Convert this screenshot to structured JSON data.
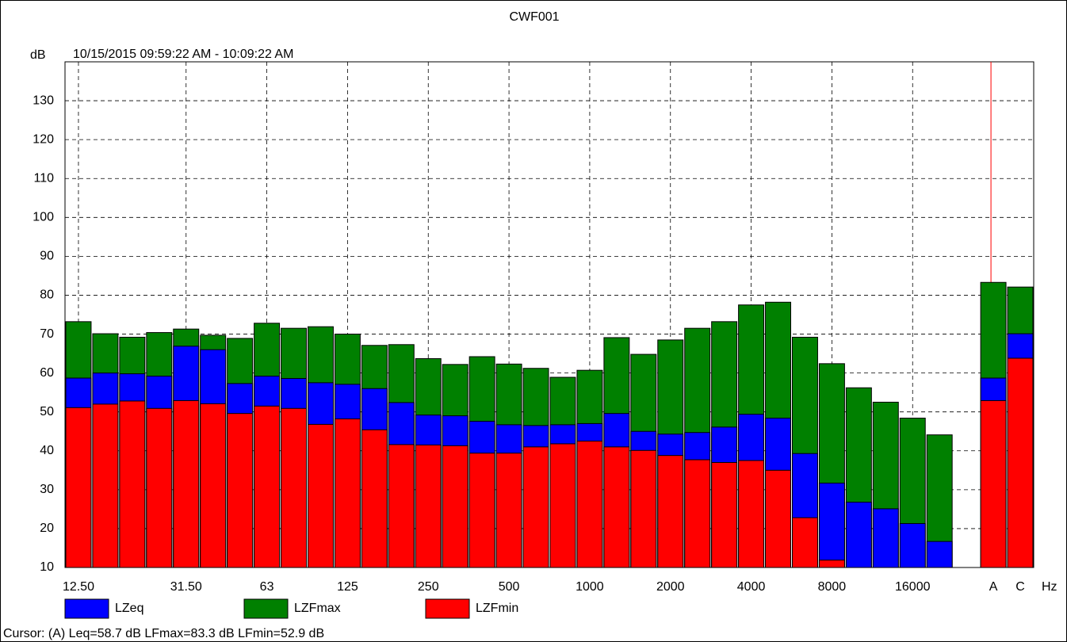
{
  "chart_data": {
    "type": "bar",
    "title": "CWF001",
    "subtitle": "10/15/2015 09:59:22 AM - 10:09:22 AM",
    "y_label": "dB",
    "x_label": "Hz",
    "categories": [
      "12.50",
      null,
      null,
      null,
      "31.50",
      null,
      null,
      "63",
      null,
      null,
      "125",
      null,
      null,
      "250",
      null,
      null,
      "500",
      null,
      null,
      "1000",
      null,
      null,
      "2000",
      null,
      null,
      "4000",
      null,
      null,
      "8000",
      null,
      null,
      "16000",
      null,
      null,
      "A",
      "C"
    ],
    "series": [
      {
        "name": "LZFmax",
        "color": "#008000",
        "values": [
          73.2,
          70.1,
          69.2,
          70.4,
          71.3,
          69.7,
          68.9,
          72.8,
          71.5,
          71.9,
          70.0,
          67.1,
          67.3,
          63.7,
          62.2,
          64.2,
          62.3,
          61.2,
          58.9,
          60.7,
          69.1,
          64.8,
          68.5,
          71.5,
          73.2,
          77.5,
          78.2,
          69.2,
          62.4,
          56.2,
          52.5,
          48.4,
          44.1,
          null,
          83.3,
          82.1
        ]
      },
      {
        "name": "LZeq",
        "color": "#0000ff",
        "values": [
          58.7,
          60.0,
          59.8,
          59.2,
          66.9,
          66.0,
          57.3,
          59.2,
          58.6,
          57.5,
          57.1,
          56.0,
          52.4,
          49.2,
          49.0,
          47.6,
          46.7,
          46.5,
          46.7,
          47.0,
          49.6,
          45.0,
          44.3,
          44.7,
          46.1,
          49.4,
          48.4,
          39.3,
          31.7,
          26.8,
          25.1,
          21.3,
          16.7,
          null,
          58.7,
          70.1
        ]
      },
      {
        "name": "LZFmin",
        "color": "#ff0000",
        "values": [
          51.1,
          52.0,
          52.8,
          50.9,
          52.9,
          52.1,
          49.6,
          51.5,
          50.9,
          46.8,
          48.2,
          45.4,
          41.6,
          41.5,
          41.3,
          39.4,
          39.4,
          41.0,
          41.8,
          42.5,
          41.0,
          40.1,
          38.8,
          37.7,
          37.0,
          37.5,
          35.0,
          22.8,
          11.9,
          null,
          null,
          null,
          null,
          null,
          52.9,
          63.8
        ]
      }
    ],
    "legend_order": [
      "LZeq",
      "LZFmax",
      "LZFmin"
    ],
    "ylim": [
      10,
      140
    ],
    "yticks": [
      10,
      20,
      30,
      40,
      50,
      60,
      70,
      80,
      90,
      100,
      110,
      120,
      130
    ],
    "grid": true,
    "cursor_category": "A",
    "cursor_color": "#ff0000",
    "cursor_text": "Cursor: (A)  Leq=58.7 dB  LFmax=83.3 dB  LFmin=52.9 dB"
  }
}
